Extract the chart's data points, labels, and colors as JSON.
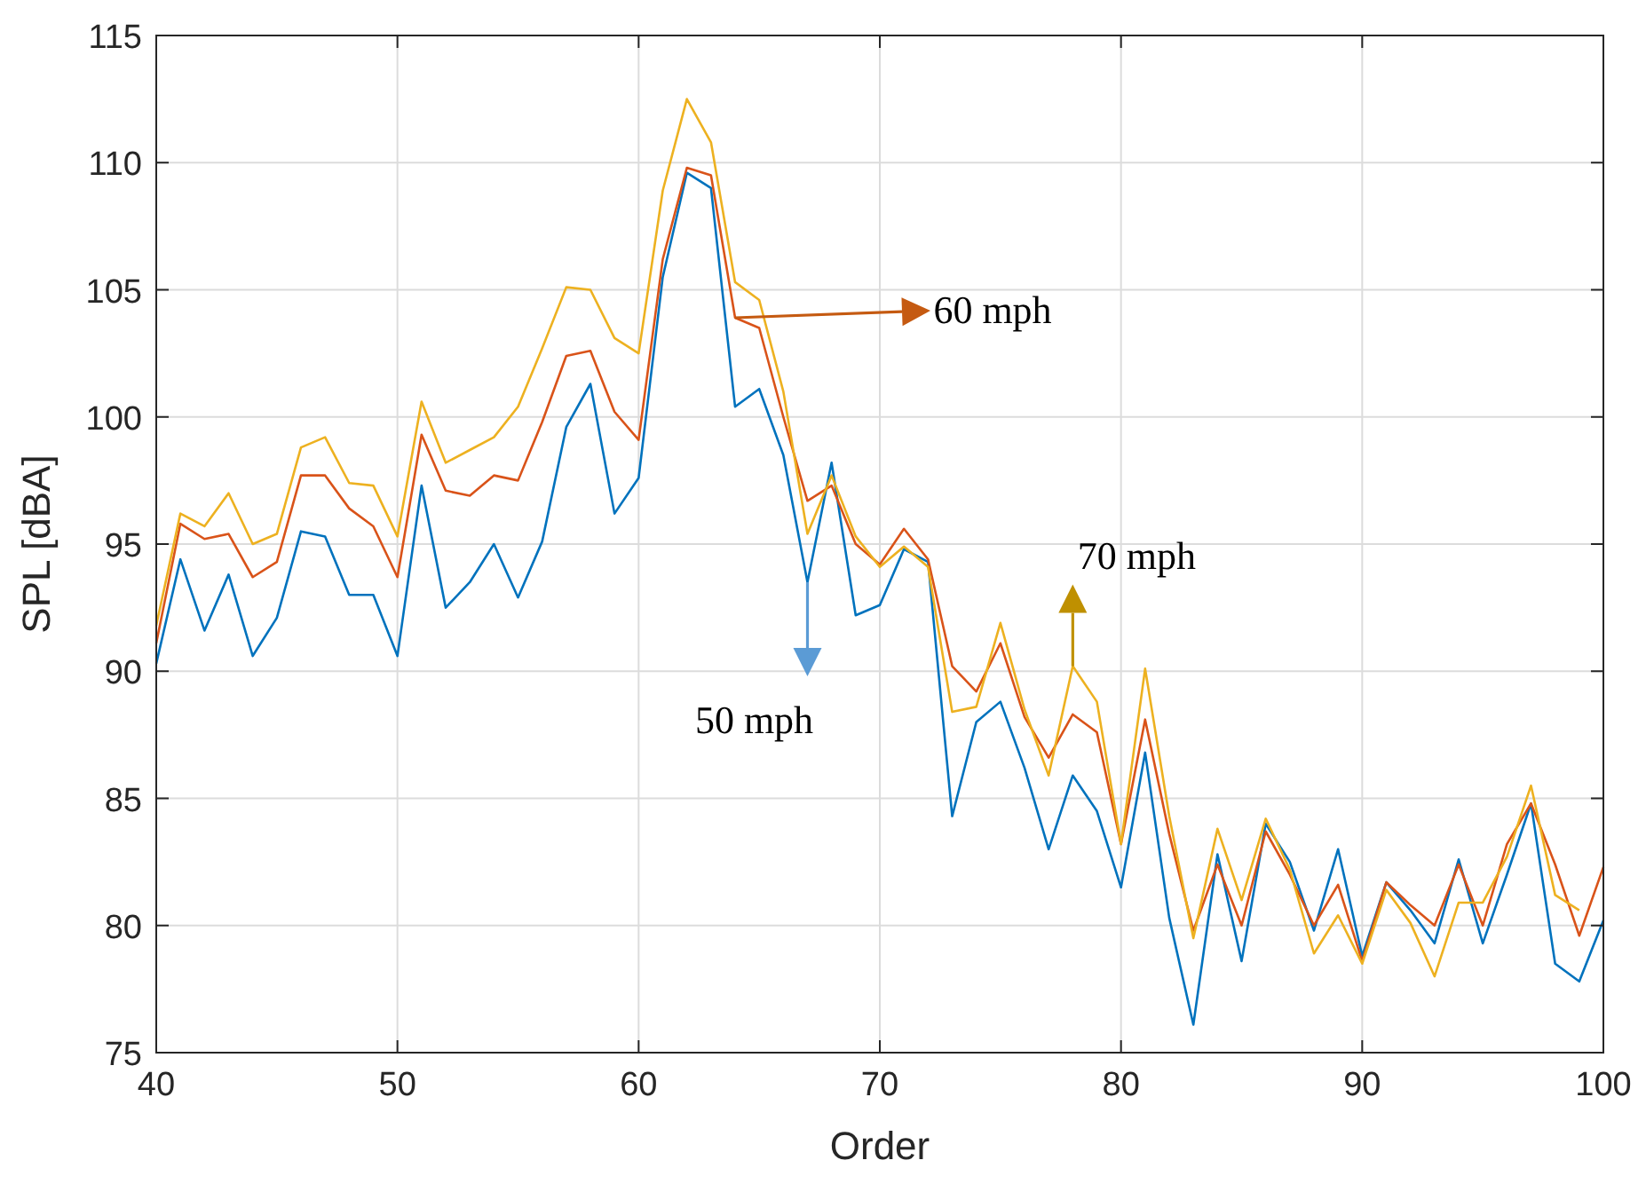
{
  "chart_data": {
    "type": "line",
    "xlabel": "Order",
    "ylabel": "SPL [dBA]",
    "x": [
      40,
      41,
      42,
      43,
      44,
      45,
      46,
      47,
      48,
      49,
      50,
      51,
      52,
      53,
      54,
      55,
      56,
      57,
      58,
      59,
      60,
      61,
      62,
      63,
      64,
      65,
      66,
      67,
      68,
      69,
      70,
      71,
      72,
      73,
      74,
      75,
      76,
      77,
      78,
      79,
      80,
      81,
      82,
      83,
      84,
      85,
      86,
      87,
      88,
      89,
      90,
      91,
      92,
      93,
      94,
      95,
      96,
      97,
      98,
      99,
      100
    ],
    "series": [
      {
        "color": "#0072bd",
        "values": [
          90.3,
          94.4,
          91.6,
          93.8,
          90.6,
          92.1,
          95.5,
          95.3,
          93.0,
          93.0,
          90.6,
          97.3,
          92.5,
          93.5,
          95.0,
          92.9,
          95.1,
          99.6,
          101.3,
          96.2,
          97.6,
          105.5,
          109.6,
          109.0,
          100.4,
          101.1,
          98.5,
          93.5,
          98.2,
          92.2,
          92.6,
          94.8,
          94.3,
          84.3,
          88.0,
          88.8,
          86.2,
          83.0,
          85.9,
          84.5,
          81.5,
          86.8,
          80.3,
          76.1,
          82.8,
          78.6,
          84.0,
          82.5,
          79.8,
          83.0,
          78.8,
          81.7,
          80.6,
          79.3,
          82.6,
          79.3,
          82.0,
          84.8,
          78.5,
          77.8,
          80.2
        ]
      },
      {
        "color": "#d95319",
        "values": [
          91.1,
          95.8,
          95.2,
          95.4,
          93.7,
          94.3,
          97.7,
          97.7,
          96.4,
          95.7,
          93.7,
          99.3,
          97.1,
          96.9,
          97.7,
          97.5,
          99.8,
          102.4,
          102.6,
          100.2,
          99.1,
          106.2,
          109.8,
          109.5,
          103.9,
          103.5,
          100.0,
          96.7,
          97.3,
          95.0,
          94.2,
          95.6,
          94.4,
          90.2,
          89.2,
          91.1,
          88.2,
          86.6,
          88.3,
          87.6,
          83.2,
          88.1,
          83.6,
          79.8,
          82.4,
          80.0,
          83.7,
          82.0,
          80.0,
          81.6,
          78.6,
          81.7,
          80.8,
          80.0,
          82.4,
          80.0,
          83.2,
          84.8,
          82.4,
          79.6,
          82.3
        ]
      },
      {
        "color": "#edb120",
        "values": [
          91.8,
          96.2,
          95.7,
          97.0,
          95.0,
          95.4,
          98.8,
          99.2,
          97.4,
          97.3,
          95.3,
          100.6,
          98.2,
          98.7,
          99.2,
          100.4,
          102.7,
          105.1,
          105.0,
          103.1,
          102.5,
          108.9,
          112.5,
          110.8,
          105.3,
          104.6,
          101.0,
          95.4,
          97.7,
          95.3,
          94.1,
          94.9,
          94.1,
          88.4,
          88.6,
          91.9,
          88.5,
          85.9,
          90.2,
          88.8,
          83.2,
          90.1,
          84.3,
          79.5,
          83.8,
          81.0,
          84.2,
          82.2,
          78.9,
          80.4,
          78.5,
          81.4,
          80.1,
          78.0,
          80.9,
          80.9,
          82.7,
          85.5,
          81.2,
          80.6,
          null
        ]
      }
    ],
    "xlim": [
      40,
      100
    ],
    "xticks": [
      40,
      50,
      60,
      70,
      80,
      90,
      100
    ],
    "ylim": [
      75,
      115
    ],
    "yticks": [
      75,
      80,
      85,
      90,
      95,
      100,
      105,
      110,
      115
    ],
    "grid": true,
    "marker": "none",
    "line_style": "solid",
    "annotations": [
      {
        "text": "50 mph",
        "x": 67,
        "y": 93.5
      },
      {
        "text": "60 mph",
        "x": 64,
        "y": 103.9
      },
      {
        "text": "70 mph",
        "x": 78,
        "y": 90.2
      }
    ]
  }
}
